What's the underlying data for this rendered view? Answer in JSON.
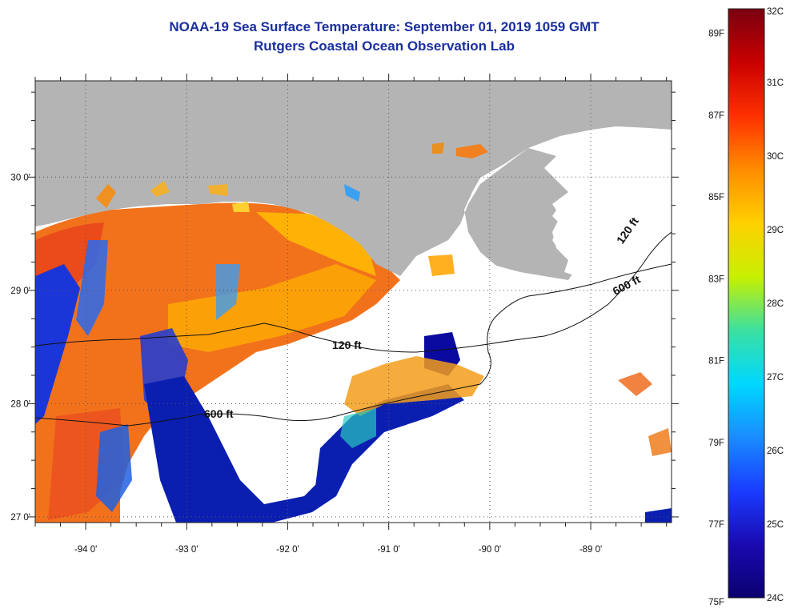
{
  "title": {
    "line1": "NOAA-19 Sea Surface Temperature:  September 01, 2019 1059 GMT",
    "line2": "Rutgers Coastal Ocean Observation Lab"
  },
  "map": {
    "lon_labels": [
      "-94 0'",
      "-93 0'",
      "-92 0'",
      "-91 0'",
      "-90 0'",
      "-89 0'"
    ],
    "lat_labels": [
      "30 0'",
      "29 0'",
      "28 0'",
      "27 0'"
    ],
    "lon_range": [
      -94.5,
      -88.2
    ],
    "lat_range": [
      26.95,
      30.85
    ],
    "contours": [
      {
        "label": "120 ft",
        "where": "mid-shelf"
      },
      {
        "label": "600 ft",
        "where": "shelf edge"
      },
      {
        "label": "120 ft",
        "where": "east"
      },
      {
        "label": "600 ft",
        "where": "east"
      }
    ],
    "colors": {
      "land": "#b4b4b4",
      "no_data": "#ffffff",
      "warm_water": "#f06a1a",
      "cool_water": "#0a1fb0"
    }
  },
  "colorbar": {
    "celsius_labels": [
      "32C",
      "31C",
      "30C",
      "29C",
      "28C",
      "27C",
      "26C",
      "25C",
      "24C"
    ],
    "fahrenheit_labels": [
      "89F",
      "87F",
      "85F",
      "83F",
      "81F",
      "79F",
      "77F",
      "75F"
    ],
    "stops": [
      "#7a0010",
      "#c80000",
      "#ff3000",
      "#ff8c00",
      "#ffd000",
      "#c8f000",
      "#3ce0a0",
      "#00d8ff",
      "#1a8cff",
      "#1a3cff",
      "#1a0ab0",
      "#0a0070"
    ]
  }
}
